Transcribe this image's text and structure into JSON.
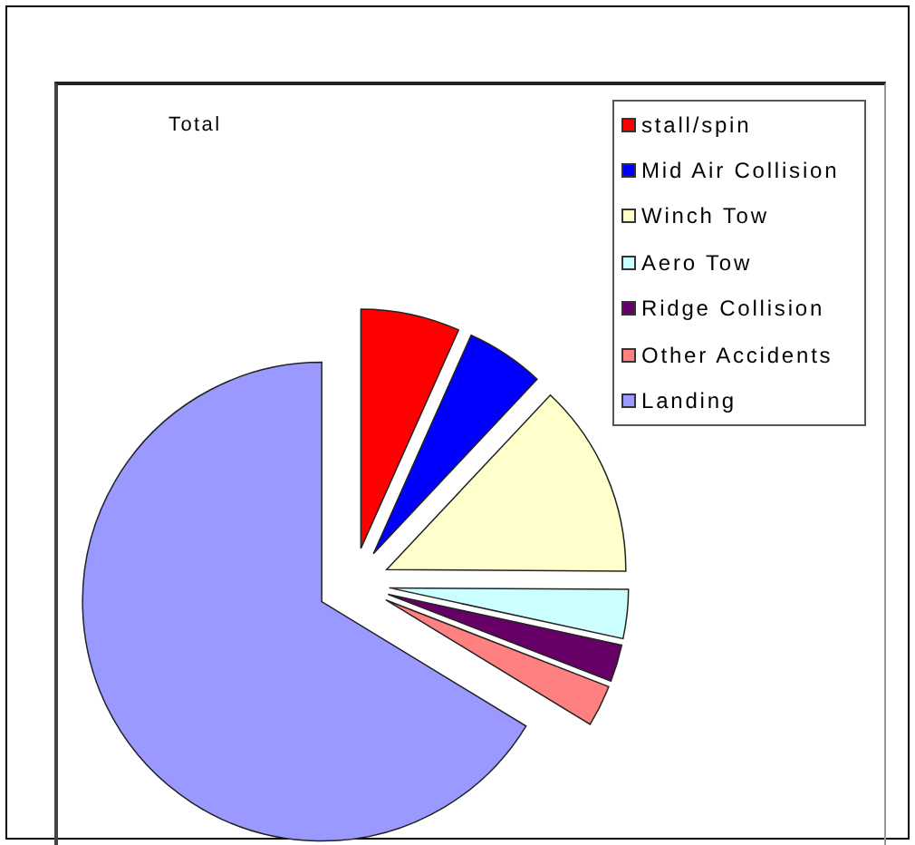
{
  "chart_data": {
    "type": "pie",
    "title": "Total",
    "categories": [
      "stall/spin",
      "Mid Air Collision",
      "Winch Tow",
      "Aero Tow",
      "Ridge Collision",
      "Other Accidents",
      "Landing"
    ],
    "values": [
      6.7,
      5.3,
      13.1,
      3.3,
      2.5,
      2.8,
      66.3
    ],
    "colors": [
      "#ff0000",
      "#0000ff",
      "#ffffcc",
      "#ccffff",
      "#660066",
      "#ff8080",
      "#9999ff"
    ],
    "legend": "top right"
  }
}
